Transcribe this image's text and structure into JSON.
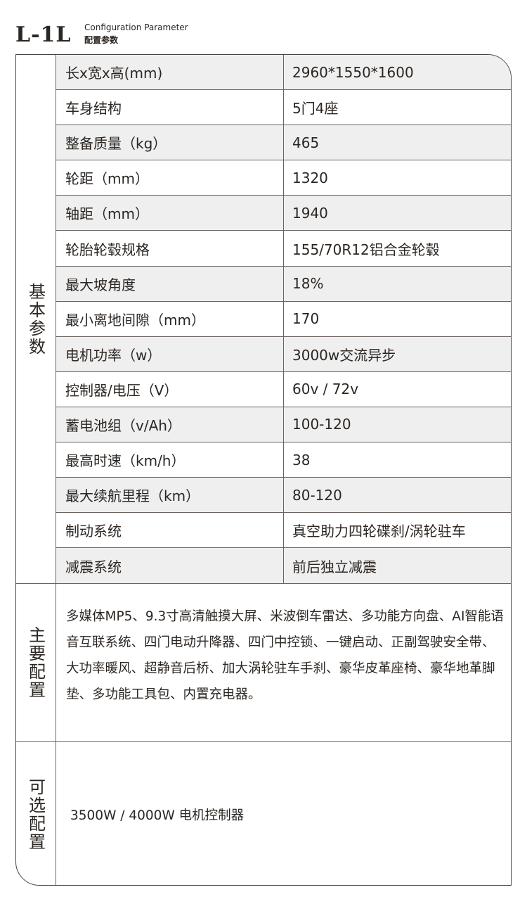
{
  "header": {
    "model": "L-1L",
    "subtitle_en": "Configuration Parameter",
    "subtitle_cn": "配置参数"
  },
  "basic": {
    "label": "基本参数",
    "rows": [
      {
        "k": "长x宽x高(mm)",
        "v": "2960*1550*1600"
      },
      {
        "k": "车身结构",
        "v": "5门4座"
      },
      {
        "k": "整备质量（kg）",
        "v": "465"
      },
      {
        "k": "轮距（mm）",
        "v": "1320"
      },
      {
        "k": "轴距（mm）",
        "v": "1940"
      },
      {
        "k": "轮胎轮毂规格",
        "v": "155/70R12铝合金轮毂"
      },
      {
        "k": "最大坡角度",
        "v": "18%"
      },
      {
        "k": "最小离地间隙（mm）",
        "v": "170"
      },
      {
        "k": "电机功率（w）",
        "v": "3000w交流异步"
      },
      {
        "k": "控制器/电压（V）",
        "v": "60v / 72v"
      },
      {
        "k": "蓄电池组（v/Ah）",
        "v": "100-120"
      },
      {
        "k": "最高时速（km/h）",
        "v": "38"
      },
      {
        "k": "最大续航里程（km）",
        "v": "80-120"
      },
      {
        "k": "制动系统",
        "v": "真空助力四轮碟刹/涡轮驻车"
      },
      {
        "k": "减震系统",
        "v": "前后独立减震"
      }
    ]
  },
  "main_config": {
    "label": "主要配置",
    "text": "多媒体MP5、9.3寸高清触摸大屏、米波倒车雷达、多功能方向盘、AI智能语音互联系统、四门电动升降器、四门中控锁、一键启动、正副驾驶安全带、大功率暖风、超静音后桥、加大涡轮驻车手刹、豪华皮革座椅、豪华地革脚垫、多功能工具包、内置充电器。"
  },
  "optional": {
    "label": "可选配置",
    "text": "3500W / 4000W 电机控制器"
  }
}
